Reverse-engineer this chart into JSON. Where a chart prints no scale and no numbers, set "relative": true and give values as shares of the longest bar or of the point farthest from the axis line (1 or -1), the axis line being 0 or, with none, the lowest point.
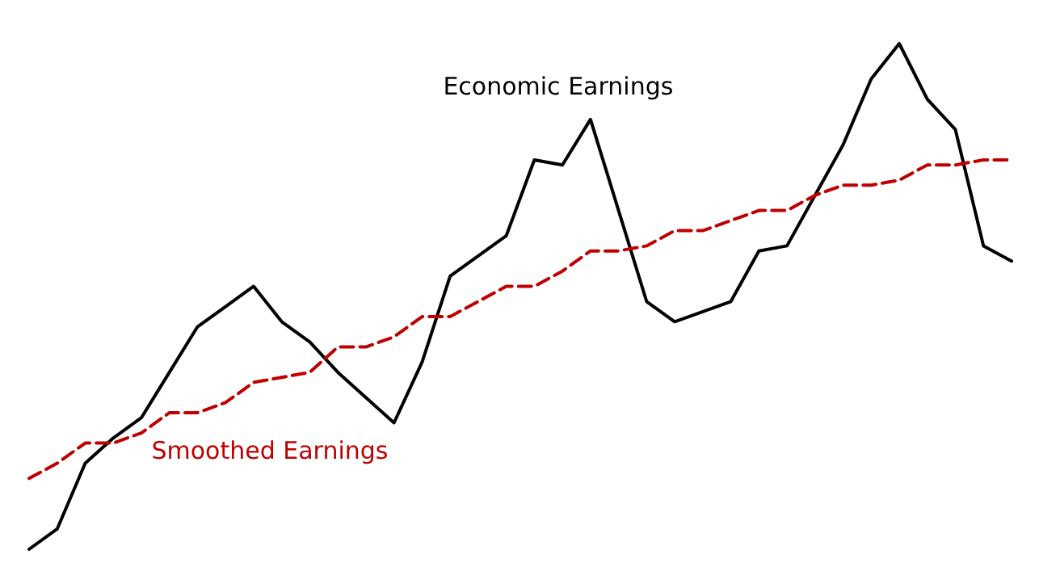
{
  "chart_data": {
    "type": "line",
    "relative": true,
    "categories": [
      null,
      null,
      null,
      null,
      null,
      null,
      null,
      null,
      null,
      null,
      null,
      null,
      null,
      null,
      null,
      null,
      null,
      null,
      null,
      null,
      null,
      null,
      null,
      null,
      null,
      null,
      null,
      null,
      null,
      null,
      null,
      null,
      null,
      null,
      null,
      null
    ],
    "series": [
      {
        "name": "Economic Earnings",
        "color": "#000000",
        "line_style": "solid",
        "values": [
          0,
          0.04,
          0.17,
          0.22,
          0.26,
          0.35,
          0.44,
          0.48,
          0.52,
          0.45,
          0.41,
          0.35,
          0.3,
          0.25,
          0.37,
          0.54,
          0.58,
          0.62,
          0.77,
          0.76,
          0.85,
          0.67,
          0.49,
          0.45,
          0.47,
          0.49,
          0.59,
          0.6,
          0.7,
          0.8,
          0.93,
          1,
          0.89,
          0.83,
          0.6,
          0.57
        ]
      },
      {
        "name": "Smoothed Earnings",
        "color": "#c00000",
        "line_style": "dashed",
        "values": [
          0.14,
          0.17,
          0.21,
          0.21,
          0.23,
          0.27,
          0.27,
          0.29,
          0.33,
          0.34,
          0.35,
          0.4,
          0.4,
          0.42,
          0.46,
          0.46,
          0.49,
          0.52,
          0.52,
          0.55,
          0.59,
          0.59,
          0.6,
          0.63,
          0.63,
          0.65,
          0.67,
          0.67,
          0.7,
          0.72,
          0.72,
          0.73,
          0.76,
          0.76,
          0.77,
          0.77
        ]
      }
    ]
  }
}
